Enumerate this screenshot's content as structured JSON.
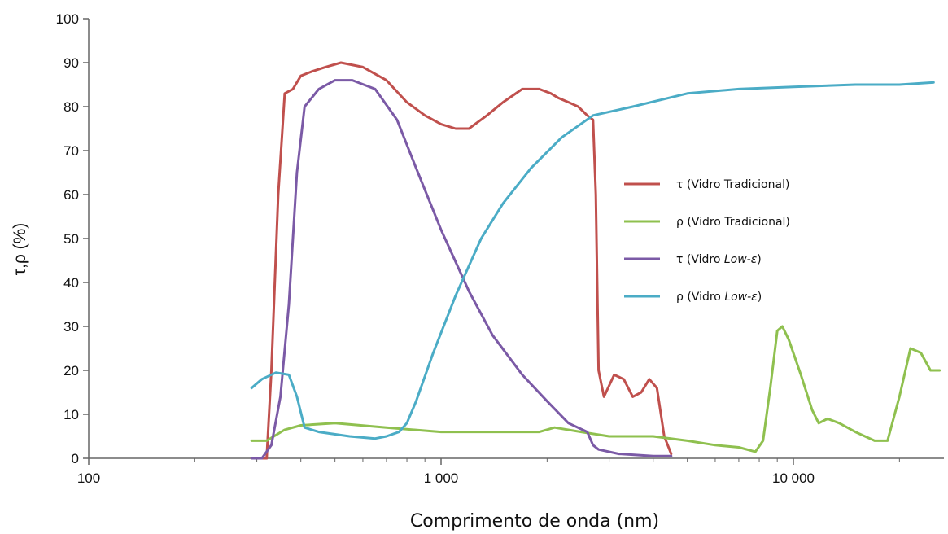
{
  "chart_data": {
    "type": "line",
    "title": "",
    "xlabel": "Comprimento de onda (nm)",
    "ylabel": "τ,ρ (%)",
    "x_scale": "log",
    "xlim": [
      100,
      30000
    ],
    "ylim": [
      0,
      100
    ],
    "x_ticks": [
      100,
      1000,
      10000
    ],
    "x_tick_labels": [
      "100",
      "1 000",
      "10 000"
    ],
    "y_ticks": [
      0,
      10,
      20,
      30,
      40,
      50,
      60,
      70,
      80,
      90,
      100
    ],
    "grid": false,
    "legend_position": "right",
    "series": [
      {
        "name": "τ (Vidro Tradicional)",
        "legend_plain": "τ (Vidro ",
        "legend_italic": "",
        "legend_tail": "Tradicional)",
        "color": "#c0504d",
        "points": [
          [
            290,
            0
          ],
          [
            320,
            0
          ],
          [
            330,
            20
          ],
          [
            345,
            60
          ],
          [
            360,
            83
          ],
          [
            380,
            84
          ],
          [
            400,
            87
          ],
          [
            430,
            88
          ],
          [
            470,
            89
          ],
          [
            520,
            90
          ],
          [
            600,
            89
          ],
          [
            700,
            86
          ],
          [
            800,
            81
          ],
          [
            900,
            78
          ],
          [
            1000,
            76
          ],
          [
            1100,
            75
          ],
          [
            1200,
            75
          ],
          [
            1350,
            78
          ],
          [
            1500,
            81
          ],
          [
            1700,
            84
          ],
          [
            1900,
            84
          ],
          [
            2050,
            83
          ],
          [
            2150,
            82
          ],
          [
            2300,
            81
          ],
          [
            2450,
            80
          ],
          [
            2600,
            78
          ],
          [
            2700,
            77
          ],
          [
            2750,
            60
          ],
          [
            2800,
            20
          ],
          [
            2900,
            14
          ],
          [
            3100,
            19
          ],
          [
            3300,
            18
          ],
          [
            3500,
            14
          ],
          [
            3700,
            15
          ],
          [
            3900,
            18
          ],
          [
            4100,
            16
          ],
          [
            4300,
            5
          ],
          [
            4500,
            1
          ]
        ]
      },
      {
        "name": "ρ (Vidro Tradicional)",
        "legend_plain": "ρ (Vidro ",
        "legend_italic": "",
        "legend_tail": "Tradicional)",
        "color": "#8fc04f",
        "points": [
          [
            290,
            4
          ],
          [
            320,
            4
          ],
          [
            360,
            6.5
          ],
          [
            400,
            7.5
          ],
          [
            500,
            8
          ],
          [
            700,
            7
          ],
          [
            1000,
            6
          ],
          [
            1500,
            6
          ],
          [
            1900,
            6
          ],
          [
            2100,
            7
          ],
          [
            2500,
            6
          ],
          [
            3000,
            5
          ],
          [
            4000,
            5
          ],
          [
            5000,
            4
          ],
          [
            6000,
            3
          ],
          [
            7000,
            2.5
          ],
          [
            7800,
            1.5
          ],
          [
            8200,
            4
          ],
          [
            8600,
            16
          ],
          [
            9000,
            29
          ],
          [
            9300,
            30
          ],
          [
            9700,
            27
          ],
          [
            10500,
            19
          ],
          [
            11300,
            11
          ],
          [
            11800,
            8
          ],
          [
            12500,
            9
          ],
          [
            13500,
            8
          ],
          [
            15000,
            6
          ],
          [
            17000,
            4
          ],
          [
            18500,
            4
          ],
          [
            20000,
            14
          ],
          [
            21500,
            25
          ],
          [
            23000,
            24
          ],
          [
            24500,
            20
          ],
          [
            26000,
            20
          ]
        ]
      },
      {
        "name": "τ (Vidro Low-ε)",
        "legend_plain": "τ (Vidro ",
        "legend_italic": "Low-ε",
        "legend_tail": ")",
        "color": "#7b5aa6",
        "points": [
          [
            290,
            0
          ],
          [
            310,
            0
          ],
          [
            330,
            3
          ],
          [
            350,
            14
          ],
          [
            370,
            35
          ],
          [
            390,
            65
          ],
          [
            410,
            80
          ],
          [
            450,
            84
          ],
          [
            500,
            86
          ],
          [
            560,
            86
          ],
          [
            650,
            84
          ],
          [
            750,
            77
          ],
          [
            850,
            66
          ],
          [
            1000,
            52
          ],
          [
            1200,
            38
          ],
          [
            1400,
            28
          ],
          [
            1700,
            19
          ],
          [
            2000,
            13
          ],
          [
            2300,
            8
          ],
          [
            2600,
            6
          ],
          [
            2700,
            3
          ],
          [
            2800,
            2
          ],
          [
            3200,
            1
          ],
          [
            4000,
            0.5
          ],
          [
            4500,
            0.5
          ]
        ]
      },
      {
        "name": "ρ (Vidro Low-ε)",
        "legend_plain": "ρ (Vidro ",
        "legend_italic": "Low-ε",
        "legend_tail": ")",
        "color": "#4bacc6",
        "points": [
          [
            290,
            16
          ],
          [
            310,
            18
          ],
          [
            340,
            19.5
          ],
          [
            370,
            19
          ],
          [
            390,
            14
          ],
          [
            410,
            7
          ],
          [
            450,
            6
          ],
          [
            550,
            5
          ],
          [
            650,
            4.5
          ],
          [
            700,
            5
          ],
          [
            760,
            6
          ],
          [
            800,
            8
          ],
          [
            850,
            13
          ],
          [
            950,
            24
          ],
          [
            1100,
            37
          ],
          [
            1300,
            50
          ],
          [
            1500,
            58
          ],
          [
            1800,
            66
          ],
          [
            2200,
            73
          ],
          [
            2700,
            78
          ],
          [
            3500,
            80
          ],
          [
            5000,
            83
          ],
          [
            7000,
            84
          ],
          [
            10000,
            84.5
          ],
          [
            15000,
            85
          ],
          [
            20000,
            85
          ],
          [
            25000,
            85.5
          ]
        ]
      }
    ]
  }
}
